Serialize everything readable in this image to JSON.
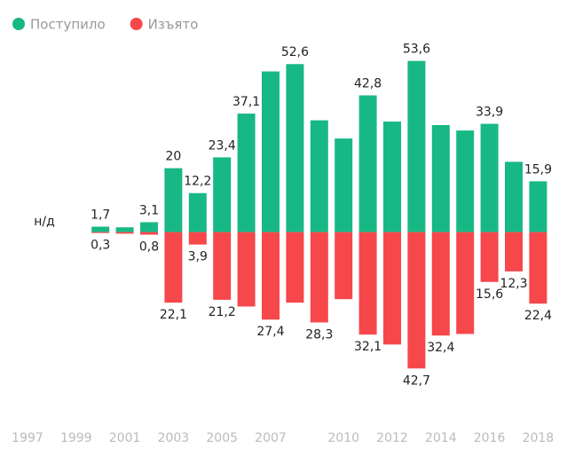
{
  "chart_data": {
    "type": "bar",
    "categories": [
      "1997",
      null,
      "1999",
      null,
      "2001",
      null,
      "2003",
      null,
      "2005",
      null,
      "2007",
      null,
      null,
      "2010",
      null,
      "2012",
      null,
      "2014",
      null,
      "2016",
      null,
      "2018"
    ],
    "series": [
      {
        "name": "Поступило",
        "color": "#17b885",
        "values": [
          null,
          null,
          null,
          1.7,
          1.5,
          3.1,
          20,
          12.2,
          23.4,
          37.1,
          50.3,
          52.6,
          35,
          29.3,
          42.8,
          34.6,
          53.6,
          33.5,
          31.8,
          33.9,
          22,
          15.9
        ],
        "value_labels": [
          null,
          null,
          null,
          "1,7",
          null,
          "3,1",
          "20",
          "12,2",
          "23,4",
          "37,1",
          null,
          "52,6",
          null,
          null,
          "42,8",
          null,
          "53,6",
          null,
          null,
          "33,9",
          null,
          "15,9"
        ]
      },
      {
        "name": "Изъято",
        "color": "#f6474b",
        "values": [
          null,
          null,
          null,
          -0.3,
          -0.5,
          -0.8,
          -22.1,
          -3.9,
          -21.2,
          -23.3,
          -27.4,
          -22.1,
          -28.3,
          -21,
          -32.1,
          -35.2,
          -42.7,
          -32.4,
          -31.9,
          -15.6,
          -12.3,
          -22.4
        ],
        "value_labels": [
          null,
          null,
          null,
          "0,3",
          null,
          "0,8",
          "22,1",
          "3,9",
          "21,2",
          null,
          "27,4",
          null,
          "28,3",
          null,
          "32,1",
          null,
          "42,7",
          "32,4",
          null,
          "15,6",
          "12,3",
          "22,4"
        ]
      }
    ],
    "annotations": [
      "н/д"
    ],
    "ylim": [
      -50,
      56
    ],
    "legend": "top-left"
  }
}
